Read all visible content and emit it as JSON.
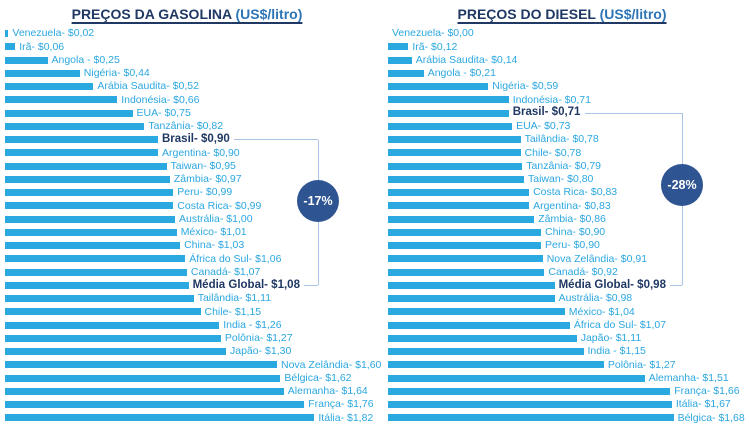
{
  "colors": {
    "bar": "#29A9E0",
    "label": "#2BA7E0",
    "highlight": "#1F3864",
    "title": "#1F3864",
    "title_unit": "#2E75B6",
    "bracket_line": "#A9C4E4",
    "badge_bg": "#2E5492",
    "badge_text": "#FFFFFF"
  },
  "chart_data": [
    {
      "type": "bar",
      "orientation": "horizontal",
      "title": "PREÇOS DA GASOLINA",
      "title_unit": "(US$/litro)",
      "xlim": [
        0,
        1.85
      ],
      "grid": false,
      "legend": "none",
      "categories": [
        "Venezuela",
        "Irã",
        "Angola",
        "Nigéria",
        "Arábia Saudita",
        "Indonésia",
        "EUA",
        "Tanzânia",
        "Brasil",
        "Argentina",
        "Taiwan",
        "Zâmbia",
        "Peru",
        "Costa Rica",
        "Austrália",
        "México",
        "China",
        "África do Sul",
        "Canadá",
        "Média Global",
        "Tailândia",
        "Chile",
        "India",
        "Polônia",
        "Japão",
        "Nova Zelândia",
        "Bélgica",
        "Alemanha",
        "França",
        "Itália"
      ],
      "values": [
        0.02,
        0.06,
        0.25,
        0.44,
        0.52,
        0.66,
        0.75,
        0.82,
        0.9,
        0.9,
        0.95,
        0.97,
        0.99,
        0.99,
        1.0,
        1.01,
        1.03,
        1.06,
        1.07,
        1.08,
        1.11,
        1.15,
        1.26,
        1.27,
        1.3,
        1.6,
        1.62,
        1.64,
        1.76,
        1.82
      ],
      "display_labels": [
        "Venezuela- $0,02",
        "Irã- $0,06",
        "Angola - $0,25",
        "Nigéria- $0,44",
        "Arábia Saudita- $0,52",
        "Indonésia- $0,66",
        "EUA- $0,75",
        "Tanzânia- $0,82",
        "Brasil- $0,90",
        "Argentina- $0,90",
        "Taiwan- $0,95",
        "Zâmbia- $0,97",
        "Peru- $0,99",
        "Costa Rica- $0,99",
        "Austrália- $1,00",
        "México- $1,01",
        "China- $1,03",
        "África do Sul- $1,06",
        "Canadá- $1,07",
        "Média Global- $1,08",
        "Tailândia- $1,11",
        "Chile- $1,15",
        "India - $1,26",
        "Polônia- $1,27",
        "Japão- $1,30",
        "Nova Zelândia- $1,60",
        "Bélgica- $1,62",
        "Alemanha- $1,64",
        "França- $1,76",
        "Itália- $1,82"
      ],
      "highlighted": [
        "Brasil",
        "Média Global"
      ],
      "annotation": {
        "badge_label": "-17%",
        "from_category": "Brasil",
        "to_category": "Média Global"
      }
    },
    {
      "type": "bar",
      "orientation": "horizontal",
      "title": "PREÇOS DO DIESEL",
      "title_unit": "(US$/litro)",
      "xlim": [
        0,
        1.85
      ],
      "grid": false,
      "legend": "none",
      "categories": [
        "Venezuela",
        "Irã",
        "Arábia Saudita",
        "Angola",
        "Nigéria",
        "Indonésia",
        "Brasil",
        "EUA",
        "Tailândia",
        "Chile",
        "Tanzânia",
        "Taiwan",
        "Costa Rica",
        "Argentina",
        "Zâmbia",
        "China",
        "Peru",
        "Nova Zelândia",
        "Canadá",
        "Média Global",
        "Austrália",
        "México",
        "África do Sul",
        "Japão",
        "India",
        "Polônia",
        "Alemanha",
        "França",
        "Itália",
        "Bélgica"
      ],
      "values": [
        0.0,
        0.12,
        0.14,
        0.21,
        0.59,
        0.71,
        0.71,
        0.73,
        0.78,
        0.78,
        0.79,
        0.8,
        0.83,
        0.83,
        0.86,
        0.9,
        0.9,
        0.91,
        0.92,
        0.98,
        0.98,
        1.04,
        1.07,
        1.11,
        1.15,
        1.27,
        1.51,
        1.66,
        1.67,
        1.68
      ],
      "display_labels": [
        "Venezuela- $0,00",
        "Irã- $0,12",
        "Arábia Saudita- $0,14",
        "Angola - $0,21",
        "Nigéria- $0,59",
        "Indonésia- $0,71",
        "Brasil- $0,71",
        "EUA- $0,73",
        "Tailândia- $0,78",
        "Chile- $0,78",
        "Tanzânia- $0,79",
        "Taiwan- $0,80",
        "Costa Rica- $0,83",
        "Argentina- $0,83",
        "Zâmbia- $0,86",
        "China- $0,90",
        "Peru- $0,90",
        "Nova Zelândia- $0,91",
        "Canadá- $0,92",
        "Média Global- $0,98",
        "Austrália- $0,98",
        "México- $1,04",
        "África do Sul- $1,07",
        "Japão- $1,11",
        "India - $1,15",
        "Polônia- $1,27",
        "Alemanha- $1,51",
        "França- $1,66",
        "Itália- $1,67",
        "Bélgica- $1,68"
      ],
      "highlighted": [
        "Brasil",
        "Média Global"
      ],
      "annotation": {
        "badge_label": "-28%",
        "from_category": "Brasil",
        "to_category": "Média Global"
      }
    }
  ]
}
